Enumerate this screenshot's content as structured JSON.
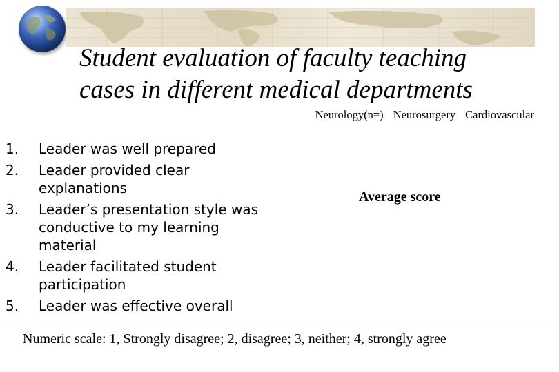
{
  "title": {
    "line1": "Student evaluation of faculty teaching",
    "line2": "cases in different medical departments"
  },
  "columns": [
    "Neurology(n=)",
    "Neurosurgery",
    "Cardiovascular"
  ],
  "items": [
    {
      "num": "1.",
      "text": "Leader was well prepared"
    },
    {
      "num": "2.",
      "text": "Leader provided clear explanations"
    },
    {
      "num": "3.",
      "text": "Leader’s presentation style was conductive to my learning material"
    },
    {
      "num": "4.",
      "text": "Leader facilitated student participation"
    },
    {
      "num": "5.",
      "text": "Leader was effective overall"
    }
  ],
  "average_label": "Average score",
  "scale_note": "Numeric scale: 1, Strongly disagree; 2, disagree; 3, neither; 4, strongly agree",
  "colors": {
    "banner": "#e4dac4",
    "globe": "#3a64b8"
  },
  "icons": {
    "globe": "globe-icon",
    "map": "world-map-icon"
  }
}
